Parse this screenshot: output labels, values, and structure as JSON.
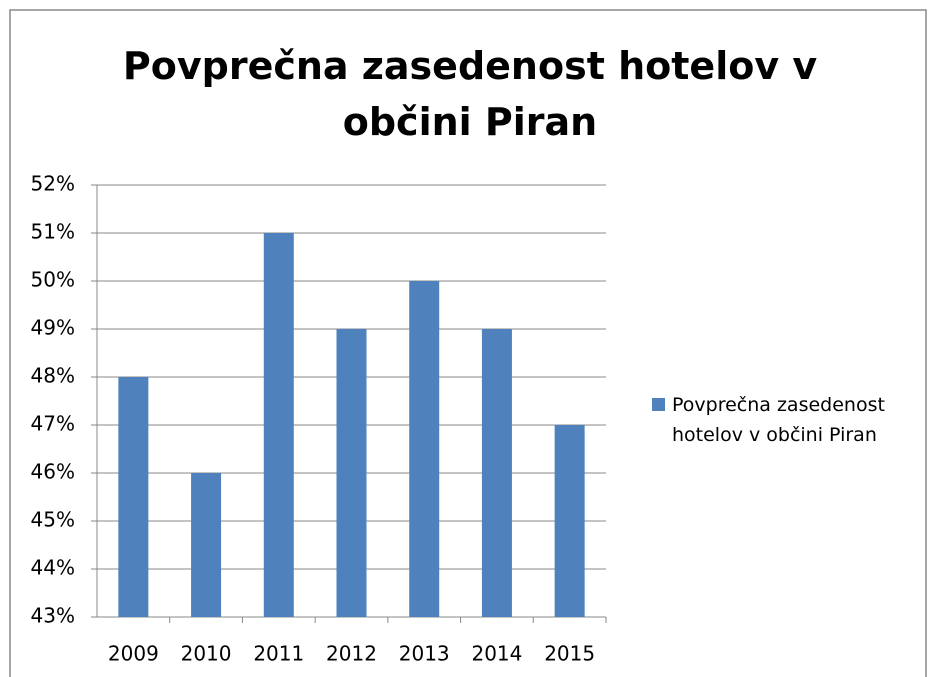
{
  "chart_data": {
    "type": "bar",
    "title": "Povprečna zasedenost hotelov v občini Piran",
    "categories": [
      "2009",
      "2010",
      "2011",
      "2012",
      "2013",
      "2014",
      "2015"
    ],
    "series": [
      {
        "name": "Povprečna zasedenost hotelov v občini Piran",
        "color": "#4f81bd",
        "values": [
          48,
          46,
          51,
          49,
          50,
          49,
          47
        ]
      }
    ],
    "ylim": [
      43,
      52
    ],
    "yticks": [
      {
        "value": 43,
        "label": "43%"
      },
      {
        "value": 44,
        "label": "44%"
      },
      {
        "value": 45,
        "label": "45%"
      },
      {
        "value": 46,
        "label": "46%"
      },
      {
        "value": 47,
        "label": "47%"
      },
      {
        "value": 48,
        "label": "48%"
      },
      {
        "value": 49,
        "label": "49%"
      },
      {
        "value": 50,
        "label": "50%"
      },
      {
        "value": 51,
        "label": "51%"
      },
      {
        "value": 52,
        "label": "52%"
      }
    ],
    "grid": true,
    "legend": "right"
  }
}
